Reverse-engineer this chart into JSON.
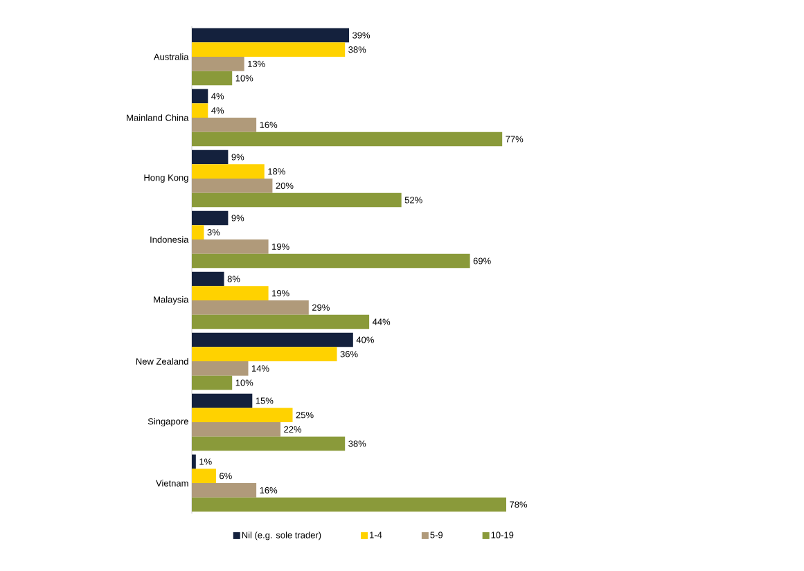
{
  "chart_data": {
    "type": "bar",
    "orientation": "horizontal",
    "legend": "bottom",
    "categories": [
      "Australia",
      "Mainland China",
      "Hong Kong",
      "Indonesia",
      "Malaysia",
      "New Zealand",
      "Singapore",
      "Vietnam"
    ],
    "series": [
      {
        "name": "Nil (e.g. sole trader)",
        "color": "#14213d",
        "values": [
          39,
          4,
          9,
          9,
          8,
          40,
          15,
          1
        ],
        "value_labels": [
          "39%",
          "4%",
          "9%",
          "9%",
          "8%",
          "40%",
          "15%",
          "1%"
        ]
      },
      {
        "name": "1-4",
        "color": "#ffd200",
        "values": [
          38,
          4,
          18,
          3,
          19,
          36,
          25,
          6
        ],
        "value_labels": [
          "38%",
          "4%",
          "18%",
          "3%",
          "19%",
          "36%",
          "25%",
          "6%"
        ]
      },
      {
        "name": "5-9",
        "color": "#b09a7a",
        "values": [
          13,
          16,
          20,
          19,
          29,
          14,
          22,
          16
        ],
        "value_labels": [
          "13%",
          "16%",
          "20%",
          "19%",
          "29%",
          "14%",
          "22%",
          "16%"
        ]
      },
      {
        "name": "10-19",
        "color": "#8a9a3a",
        "values": [
          10,
          77,
          52,
          69,
          44,
          10,
          38,
          78
        ],
        "value_labels": [
          "10%",
          "77%",
          "52%",
          "69%",
          "44%",
          "10%",
          "38%",
          "78%"
        ]
      }
    ]
  }
}
